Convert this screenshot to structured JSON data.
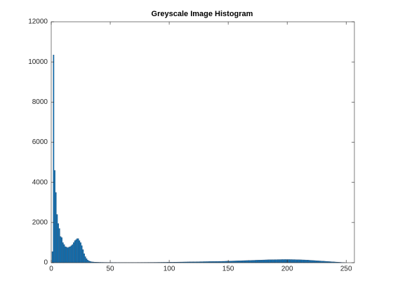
{
  "chart_data": {
    "type": "bar",
    "title": "Greyscale Image Histogram",
    "x": [
      1,
      2,
      3,
      4,
      5,
      6,
      7,
      8,
      9,
      10,
      11,
      12,
      13,
      14,
      15,
      16,
      17,
      18,
      19,
      20,
      21,
      22,
      23,
      24,
      25,
      26,
      27,
      28,
      29,
      30,
      31,
      32,
      33,
      34,
      35,
      36,
      37,
      38,
      39,
      40,
      41,
      42,
      43,
      44,
      45,
      46,
      47,
      48,
      49,
      50,
      51,
      52,
      53,
      54,
      55,
      56,
      57,
      58,
      59,
      60,
      61,
      62,
      63,
      64,
      65,
      66,
      67,
      68,
      69,
      70,
      71,
      72,
      73,
      74,
      75,
      76,
      77,
      78,
      79,
      80,
      81,
      82,
      83,
      84,
      85,
      86,
      87,
      88,
      89,
      90,
      91,
      92,
      93,
      94,
      95,
      96,
      97,
      98,
      99,
      100,
      101,
      102,
      103,
      104,
      105,
      106,
      107,
      108,
      109,
      110,
      111,
      112,
      113,
      114,
      115,
      116,
      117,
      118,
      119,
      120,
      121,
      122,
      123,
      124,
      125,
      126,
      127,
      128,
      129,
      130,
      131,
      132,
      133,
      134,
      135,
      136,
      137,
      138,
      139,
      140,
      141,
      142,
      143,
      144,
      145,
      146,
      147,
      148,
      149,
      150,
      151,
      152,
      153,
      154,
      155,
      156,
      157,
      158,
      159,
      160,
      161,
      162,
      163,
      164,
      165,
      166,
      167,
      168,
      169,
      170,
      171,
      172,
      173,
      174,
      175,
      176,
      177,
      178,
      179,
      180,
      181,
      182,
      183,
      184,
      185,
      186,
      187,
      188,
      189,
      190,
      191,
      192,
      193,
      194,
      195,
      196,
      197,
      198,
      199,
      200,
      201,
      202,
      203,
      204,
      205,
      206,
      207,
      208,
      209,
      210,
      211,
      212,
      213,
      214,
      215,
      216,
      217,
      218,
      219,
      220,
      221,
      222,
      223,
      224,
      225,
      226,
      227,
      228,
      229,
      230,
      231,
      232,
      233,
      234,
      235,
      236,
      237,
      238,
      239,
      240,
      241,
      242,
      243,
      244,
      245,
      246,
      247,
      248,
      249,
      250,
      251,
      252,
      253,
      254,
      255,
      256
    ],
    "values": [
      550,
      10350,
      4600,
      3500,
      2400,
      1950,
      1700,
      1300,
      1250,
      1000,
      900,
      800,
      780,
      750,
      780,
      800,
      850,
      900,
      1000,
      1100,
      1150,
      1200,
      1200,
      1100,
      1000,
      850,
      650,
      450,
      300,
      200,
      130,
      90,
      70,
      50,
      40,
      35,
      30,
      28,
      25,
      22,
      20,
      20,
      18,
      18,
      17,
      16,
      16,
      15,
      15,
      15,
      14,
      14,
      13,
      13,
      13,
      12,
      12,
      12,
      12,
      12,
      12,
      12,
      12,
      12,
      12,
      12,
      12,
      12,
      12,
      12,
      12,
      12,
      13,
      13,
      13,
      13,
      14,
      14,
      14,
      14,
      15,
      15,
      15,
      16,
      16,
      16,
      17,
      17,
      18,
      18,
      19,
      19,
      20,
      20,
      21,
      21,
      22,
      22,
      23,
      24,
      25,
      26,
      27,
      28,
      29,
      30,
      31,
      32,
      33,
      34,
      35,
      36,
      37,
      38,
      39,
      40,
      41,
      42,
      43,
      44,
      45,
      46,
      47,
      48,
      49,
      50,
      51,
      52,
      53,
      54,
      55,
      56,
      57,
      58,
      59,
      60,
      61,
      62,
      63,
      64,
      65,
      66,
      67,
      68,
      69,
      70,
      72,
      74,
      76,
      78,
      80,
      82,
      84,
      86,
      88,
      90,
      92,
      94,
      96,
      98,
      100,
      102,
      104,
      106,
      108,
      110,
      112,
      114,
      116,
      118,
      120,
      122,
      124,
      126,
      128,
      130,
      132,
      134,
      136,
      138,
      140,
      142,
      144,
      146,
      148,
      150,
      150,
      152,
      152,
      154,
      154,
      156,
      156,
      158,
      158,
      160,
      160,
      160,
      160,
      160,
      160,
      160,
      158,
      158,
      156,
      156,
      154,
      152,
      150,
      148,
      146,
      144,
      142,
      140,
      138,
      136,
      132,
      128,
      124,
      120,
      116,
      112,
      108,
      104,
      100,
      96,
      92,
      88,
      84,
      80,
      76,
      72,
      68,
      64,
      60,
      56,
      52,
      48,
      44,
      40,
      36,
      32,
      28,
      24,
      20,
      16,
      12,
      8,
      4,
      0,
      0,
      0,
      0,
      0,
      0,
      0
    ],
    "color": "#0072bd",
    "xlim": [
      0,
      257
    ],
    "xticks": [
      0,
      50,
      100,
      150,
      200,
      250
    ],
    "ylim": [
      0,
      12000
    ],
    "yticks": [
      0,
      2000,
      4000,
      6000,
      8000,
      10000,
      12000
    ]
  }
}
